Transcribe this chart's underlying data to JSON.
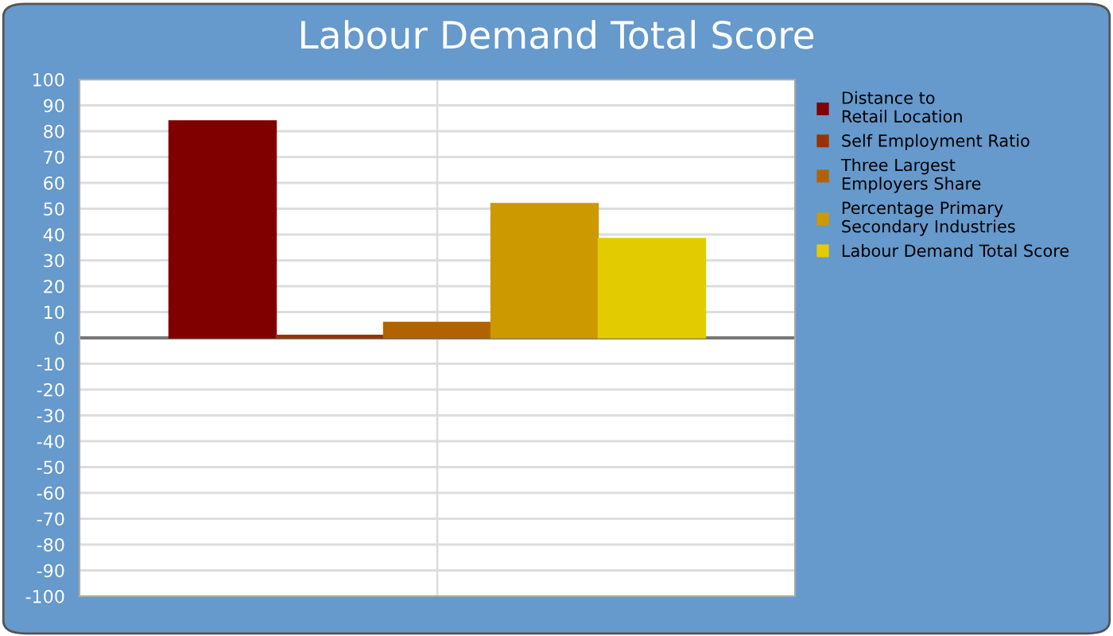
{
  "chart_data": {
    "type": "bar",
    "title": "Labour Demand Total Score",
    "categories": [
      null
    ],
    "series": [
      {
        "name": "Distance to\nRetail Location",
        "color": "#800000",
        "values": [
          84
        ]
      },
      {
        "name": "Self Employment Ratio",
        "color": "#993300",
        "values": [
          1
        ]
      },
      {
        "name": "Three Largest\nEmployers Share",
        "color": "#b36200",
        "values": [
          6
        ]
      },
      {
        "name": "Percentage Primary\nSecondary Industries",
        "color": "#cc9900",
        "values": [
          52
        ]
      },
      {
        "name": "Labour Demand Total Score",
        "color": "#e2cc00",
        "values": [
          38.5
        ]
      }
    ],
    "ylim": [
      -100,
      100
    ],
    "yticks": [
      -100,
      -90,
      -80,
      -70,
      -60,
      -50,
      -40,
      -30,
      -20,
      -10,
      0,
      10,
      20,
      30,
      40,
      50,
      60,
      70,
      80,
      90,
      100
    ],
    "grid": true,
    "legend": "right"
  }
}
